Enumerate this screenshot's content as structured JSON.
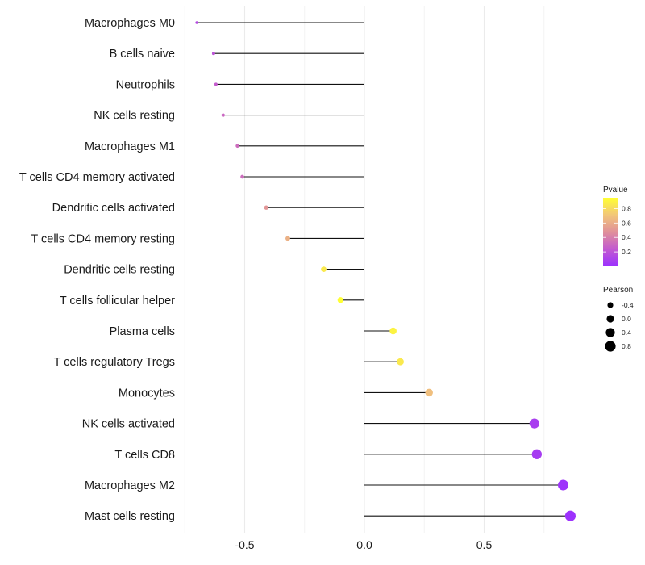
{
  "chart_data": {
    "type": "lollipop",
    "title": "",
    "xlabel": "",
    "ylabel": "",
    "xlim": [
      -0.75,
      0.87
    ],
    "x_ticks": [
      -0.5,
      0.0,
      0.5
    ],
    "x_tick_labels": [
      "-0.5",
      "0.0",
      "0.5"
    ],
    "categories": [
      "Macrophages M0",
      "B cells naive",
      "Neutrophils",
      "NK cells resting",
      "Macrophages M1",
      "T cells CD4 memory activated",
      "Dendritic cells activated",
      "T cells CD4 memory resting",
      "Dendritic cells resting",
      "T cells follicular helper",
      "Plasma cells",
      "T cells regulatory  Tregs ",
      "Monocytes",
      "NK cells activated",
      "T cells CD8",
      "Macrophages M2",
      "Mast cells resting"
    ],
    "pearson": [
      -0.7,
      -0.63,
      -0.62,
      -0.59,
      -0.53,
      -0.51,
      -0.41,
      -0.32,
      -0.17,
      -0.1,
      0.12,
      0.15,
      0.27,
      0.71,
      0.72,
      0.83,
      0.86
    ],
    "pvalue": [
      0.15,
      0.2,
      0.25,
      0.3,
      0.32,
      0.32,
      0.5,
      0.62,
      0.86,
      0.95,
      0.9,
      0.86,
      0.68,
      0.08,
      0.07,
      0.02,
      0.01
    ],
    "legend": {
      "color": {
        "title": "Pvalue",
        "ticks": [
          0.2,
          0.4,
          0.6,
          0.8
        ],
        "tick_labels": [
          "0.2",
          "0.4",
          "0.6",
          "0.8"
        ],
        "range": [
          0.0,
          0.95
        ],
        "low_color": "#9b30ff",
        "high_color": "#ffff33"
      },
      "size": {
        "title": "Pearson",
        "values": [
          -0.4,
          0.0,
          0.4,
          0.8
        ],
        "labels": [
          "-0.4",
          "0.0",
          "0.4",
          "0.8"
        ]
      },
      "position": "right"
    },
    "grid": true
  }
}
